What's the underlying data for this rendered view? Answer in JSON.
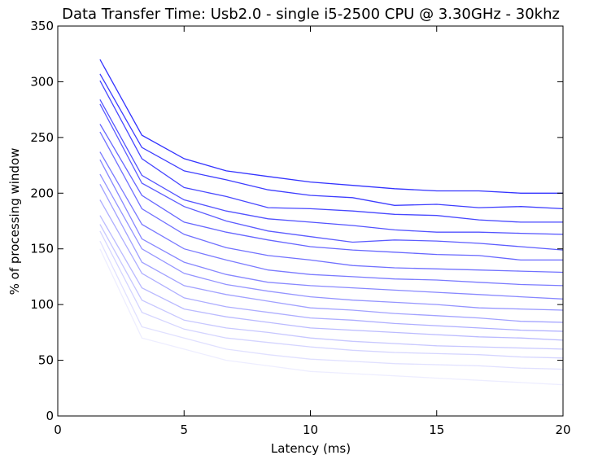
{
  "chart_data": {
    "type": "line",
    "title": "Data Transfer Time: Usb2.0 - single i5-2500 CPU @ 3.30GHz - 30khz",
    "xlabel": "Latency (ms)",
    "ylabel": "% of processing window",
    "xlim": [
      0,
      20
    ],
    "ylim": [
      0,
      350
    ],
    "xticks": [
      0,
      5,
      10,
      15,
      20
    ],
    "yticks": [
      0,
      50,
      100,
      150,
      200,
      250,
      300,
      350
    ],
    "grid": false,
    "legend": "none",
    "base_color": "#0000ff",
    "x": [
      1.67,
      3.33,
      5.0,
      6.67,
      8.33,
      10.0,
      11.67,
      13.33,
      15.0,
      16.67,
      18.33,
      20.0
    ],
    "series": [
      {
        "values": [
          320,
          252,
          231,
          220,
          215,
          210,
          207,
          204,
          202,
          202,
          200,
          200
        ],
        "opacity": 0.8
      },
      {
        "values": [
          307,
          241,
          220,
          212,
          203,
          198,
          196,
          189,
          190,
          187,
          188,
          186
        ],
        "opacity": 0.76
      },
      {
        "values": [
          301,
          231,
          205,
          197,
          187,
          186,
          184,
          181,
          180,
          176,
          174,
          174
        ],
        "opacity": 0.72
      },
      {
        "values": [
          284,
          216,
          194,
          184,
          177,
          174,
          171,
          167,
          165,
          165,
          164,
          163
        ],
        "opacity": 0.68
      },
      {
        "values": [
          280,
          209,
          188,
          175,
          166,
          161,
          156,
          158,
          157,
          155,
          152,
          149
        ],
        "opacity": 0.64
      },
      {
        "values": [
          262,
          198,
          174,
          165,
          158,
          152,
          149,
          147,
          145,
          144,
          140,
          140
        ],
        "opacity": 0.6
      },
      {
        "values": [
          255,
          186,
          163,
          151,
          144,
          140,
          135,
          133,
          132,
          131,
          130,
          129
        ],
        "opacity": 0.56
      },
      {
        "values": [
          237,
          172,
          150,
          140,
          131,
          127,
          125,
          123,
          122,
          120,
          118,
          117
        ],
        "opacity": 0.52
      },
      {
        "values": [
          230,
          159,
          138,
          127,
          120,
          117,
          115,
          113,
          111,
          109,
          107,
          105
        ],
        "opacity": 0.47
      },
      {
        "values": [
          217,
          150,
          128,
          118,
          112,
          107,
          104,
          102,
          100,
          97,
          96,
          95
        ],
        "opacity": 0.42
      },
      {
        "values": [
          208,
          138,
          117,
          109,
          103,
          97,
          95,
          92,
          90,
          88,
          85,
          84
        ],
        "opacity": 0.37
      },
      {
        "values": [
          194,
          128,
          106,
          98,
          93,
          88,
          86,
          83,
          81,
          79,
          77,
          76
        ],
        "opacity": 0.32
      },
      {
        "values": [
          180,
          115,
          96,
          89,
          84,
          79,
          77,
          75,
          73,
          71,
          70,
          68
        ],
        "opacity": 0.27
      },
      {
        "values": [
          172,
          104,
          86,
          79,
          75,
          70,
          67,
          65,
          63,
          62,
          61,
          60
        ],
        "opacity": 0.22
      },
      {
        "values": [
          166,
          93,
          78,
          70,
          66,
          62,
          59,
          57,
          56,
          55,
          53,
          52
        ],
        "opacity": 0.17
      },
      {
        "values": [
          157,
          80,
          70,
          60,
          55,
          51,
          49,
          47,
          46,
          45,
          43,
          42
        ],
        "opacity": 0.12
      },
      {
        "values": [
          150,
          70,
          60,
          50,
          45,
          40,
          38,
          36,
          34,
          32,
          30,
          28
        ],
        "opacity": 0.07
      }
    ]
  }
}
